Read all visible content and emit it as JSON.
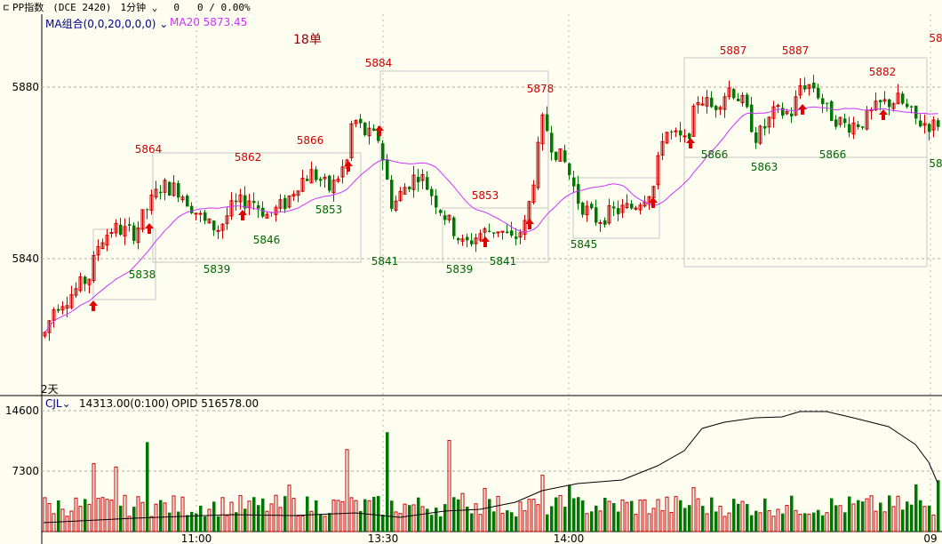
{
  "toolbar": {
    "symbol": "PP指数",
    "contract": "(DCE 2420)",
    "period": "1分钟",
    "change": "0",
    "change_pct": "0 / 0.00%"
  },
  "main_indicator": {
    "name": "MA组合(0,0,20,0,0,0)",
    "ma_label": "MA20",
    "ma_value": "5873.45"
  },
  "orders_note": "18单",
  "days_marker": "2天",
  "price_axis": {
    "ticks": [
      "5880",
      "5840"
    ]
  },
  "sub_indicator": {
    "name": "CJL",
    "volume_text": "14313.00(0:100)",
    "opid_text": "OPID 516578.00",
    "ticks": [
      "14600",
      "7300"
    ]
  },
  "time_axis": [
    "11:00",
    "13:30",
    "14:00",
    "09"
  ],
  "annotations": {
    "highs": [
      "5864",
      "5862",
      "5866",
      "5884",
      "5878",
      "5853",
      "5887",
      "5887",
      "5882",
      "58"
    ],
    "lows": [
      "5838",
      "5839",
      "5846",
      "5853",
      "5841",
      "5839",
      "5841",
      "5845",
      "5866",
      "5863",
      "5866",
      "58"
    ]
  },
  "colors": {
    "background": "#fdfdf0",
    "up": "#cc0000",
    "down": "#007700",
    "ma": "#cc33ff",
    "annotation_high": "#d00000",
    "annotation_low": "#006600",
    "axis_text": "#000000",
    "box": "#c8c8c8"
  },
  "chart_data": [
    {
      "type": "candlestick",
      "title": "PP指数",
      "series": [
        {
          "name": "MA20"
        }
      ],
      "ylim": [
        5815,
        5890
      ],
      "y_ticks": [
        5880,
        5840
      ],
      "x_ticks": [
        "11:00",
        "13:30",
        "14:00",
        "09"
      ],
      "marked_highs": [
        5864,
        5862,
        5866,
        5884,
        5878,
        5853,
        5887,
        5887,
        5882
      ],
      "marked_lows": [
        5838,
        5839,
        5846,
        5853,
        5841,
        5839,
        5841,
        5845,
        5866,
        5863,
        5866
      ],
      "last_ma20": 5873.45
    },
    {
      "type": "bar",
      "title": "CJL",
      "ylim": [
        0,
        16000
      ],
      "y_ticks": [
        14600,
        7300
      ],
      "opid": 516578
    }
  ]
}
